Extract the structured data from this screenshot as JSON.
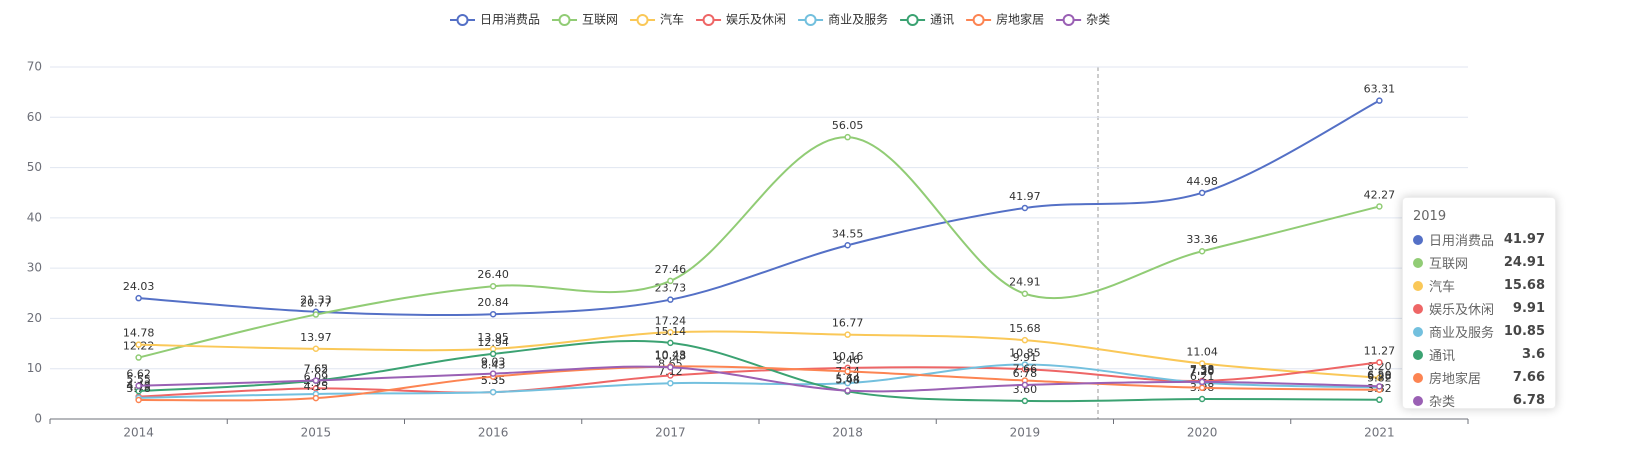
{
  "chart_data": {
    "type": "line",
    "categories": [
      "2014",
      "2015",
      "2016",
      "2017",
      "2018",
      "2019",
      "2020",
      "2021"
    ],
    "ylim": [
      0,
      70
    ],
    "yticks": [
      0,
      10,
      20,
      30,
      40,
      50,
      60,
      70
    ],
    "grid": true,
    "smooth": true,
    "tooltip_index": 5,
    "series": [
      {
        "name": "日用消费品",
        "color": "#5470c6",
        "values": [
          24.03,
          21.33,
          20.84,
          23.73,
          34.55,
          41.97,
          44.98,
          63.31
        ],
        "value_labels": [
          "24.03",
          "21.33",
          "20.84",
          "23.73",
          "34.55",
          "41.97",
          "44.98",
          "63.31"
        ]
      },
      {
        "name": "互联网",
        "color": "#91cc75",
        "values": [
          12.22,
          20.77,
          26.4,
          27.46,
          56.05,
          24.91,
          33.36,
          42.27
        ],
        "value_labels": [
          "12.22",
          "20.77",
          "26.40",
          "27.46",
          "56.05",
          "24.91",
          "33.36",
          "42.27"
        ]
      },
      {
        "name": "汽车",
        "color": "#fac858",
        "values": [
          14.78,
          13.97,
          13.95,
          17.24,
          16.77,
          15.68,
          11.04,
          8.2
        ],
        "value_labels": [
          "14.78",
          "13.97",
          "13.95",
          "17.24",
          "16.77",
          "15.68",
          "11.04",
          "8.20"
        ]
      },
      {
        "name": "娱乐及休闲",
        "color": "#ee6666",
        "values": [
          4.43,
          6.09,
          5.35,
          8.65,
          10.16,
          9.91,
          7.58,
          11.27
        ],
        "value_labels": [
          "4.43",
          "6.09",
          "5.35",
          "8.65",
          "10.16",
          "9.91",
          "7.58",
          "11.27"
        ]
      },
      {
        "name": "商业及服务",
        "color": "#73c0de",
        "values": [
          4.19,
          4.98,
          5.35,
          7.12,
          7.14,
          10.85,
          7.2,
          6.28
        ],
        "value_labels": [
          "4.19",
          "4.98",
          "5.35",
          "7.12",
          "7.14",
          "10.85",
          "7.20",
          "6.28"
        ]
      },
      {
        "name": "通讯",
        "color": "#3ba272",
        "values": [
          5.55,
          7.62,
          12.94,
          15.14,
          5.48,
          3.6,
          3.98,
          3.82
        ],
        "value_labels": [
          "5.55",
          "7.62",
          "12.94",
          "15.14",
          "5.48",
          "3.60",
          "3.98",
          "3.82"
        ]
      },
      {
        "name": "房地家居",
        "color": "#fc8452",
        "values": [
          3.78,
          4.15,
          8.43,
          10.43,
          9.46,
          7.66,
          6.21,
          5.82
        ],
        "value_labels": [
          "3.78",
          "4.15",
          "8.43",
          "10.43",
          "9.46",
          "7.66",
          "6.21",
          "5.82"
        ]
      },
      {
        "name": "杂类",
        "color": "#9a60b4",
        "values": [
          6.62,
          7.65,
          9.03,
          10.28,
          5.64,
          6.78,
          7.38,
          6.5
        ],
        "value_labels": [
          "6.62",
          "7.65",
          "9.03",
          "10.28",
          "5.64",
          "6.78",
          "7.38",
          "6.50"
        ]
      }
    ]
  }
}
